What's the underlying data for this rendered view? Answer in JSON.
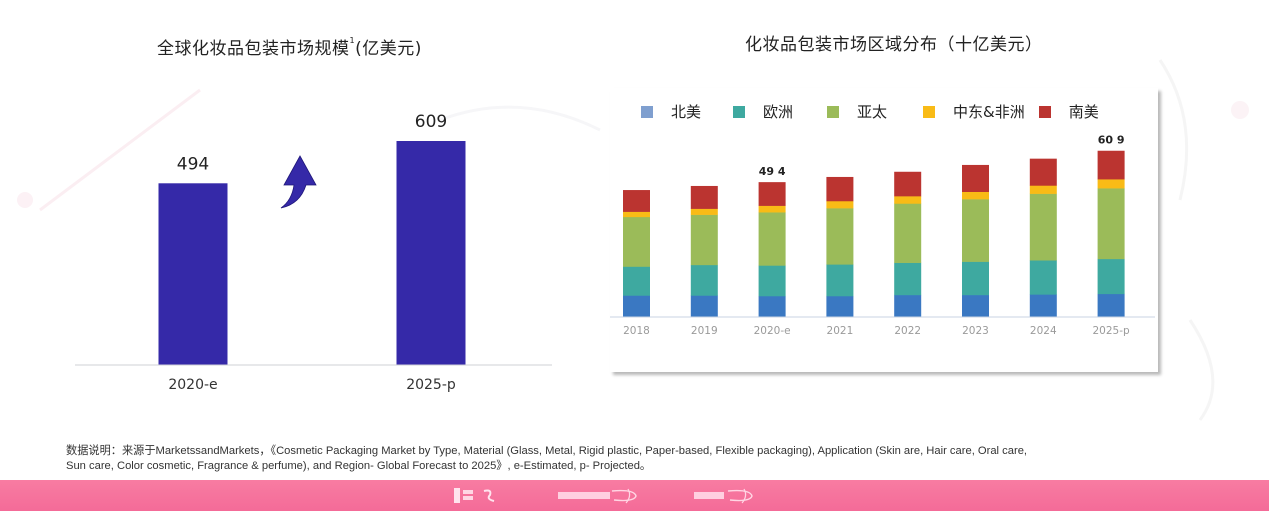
{
  "left_panel": {
    "title": "全球化妆品包装市场规模",
    "title_sup": "1",
    "title_unit": "(亿美元)"
  },
  "right_panel": {
    "title": "化妆品包装市场区域分布（十亿美元）"
  },
  "chart_data": [
    {
      "type": "bar",
      "title": "全球化妆品包装市场规模1(亿美元)",
      "categories": [
        "2020-e",
        "2025-p"
      ],
      "values": [
        494,
        609
      ],
      "data_labels": [
        "494",
        "609"
      ],
      "xlabel": "",
      "ylabel": "",
      "ylim": [
        0,
        700
      ],
      "grid": false,
      "annotation": "up-arrow-icon",
      "color": "#3529a8"
    },
    {
      "type": "bar",
      "stacked": true,
      "title": "化妆品包装市场区域分布（十亿美元）",
      "categories": [
        "2018",
        "2019",
        "2020-e",
        "2021",
        "2022",
        "2023",
        "2024",
        "2025-p"
      ],
      "series": [
        {
          "name": "北美",
          "color": "#3a78c2",
          "values": [
            7.9,
            7.9,
            7.7,
            7.7,
            8.1,
            8.1,
            8.3,
            8.5
          ]
        },
        {
          "name": "欧洲",
          "color": "#3ea9a0",
          "values": [
            10.6,
            11.2,
            11.2,
            11.6,
            11.8,
            12.2,
            12.5,
            12.8
          ]
        },
        {
          "name": "亚太",
          "color": "#9bbb59",
          "values": [
            18.2,
            18.4,
            19.5,
            20.6,
            21.7,
            22.9,
            24.4,
            25.9
          ]
        },
        {
          "name": "中东&非洲",
          "color": "#f9bb16",
          "values": [
            1.9,
            2.2,
            2.4,
            2.6,
            2.7,
            2.7,
            3.0,
            3.3
          ]
        },
        {
          "name": "南美",
          "color": "#bb3430",
          "values": [
            7.9,
            8.3,
            8.6,
            8.8,
            8.9,
            9.8,
            9.8,
            10.4
          ]
        }
      ],
      "legend_marker_color": "#7f9fcf",
      "data_labels": {
        "2020-e": "49 4",
        "2025-p": "60 9"
      },
      "ylim": [
        0,
        66
      ],
      "grid": false,
      "legend": "top"
    }
  ],
  "note": {
    "line1": "数据说明：来源于MarketssandMarkets，《Cosmetic Packaging Market by Type, Material (Glass, Metal, Rigid plastic, Paper-based, Flexible packaging), Application (Skin are, Hair care, Oral care,",
    "line2": "Sun care, Color cosmetic, Fragrance & perfume), and Region- Global Forecast to 2025》, e-Estimated, p- Projected。"
  },
  "footer": {
    "color": "#f674a0",
    "logos": [
      "brand-logo-icon",
      "research-logo-icon",
      "beauty-logo-icon"
    ]
  }
}
